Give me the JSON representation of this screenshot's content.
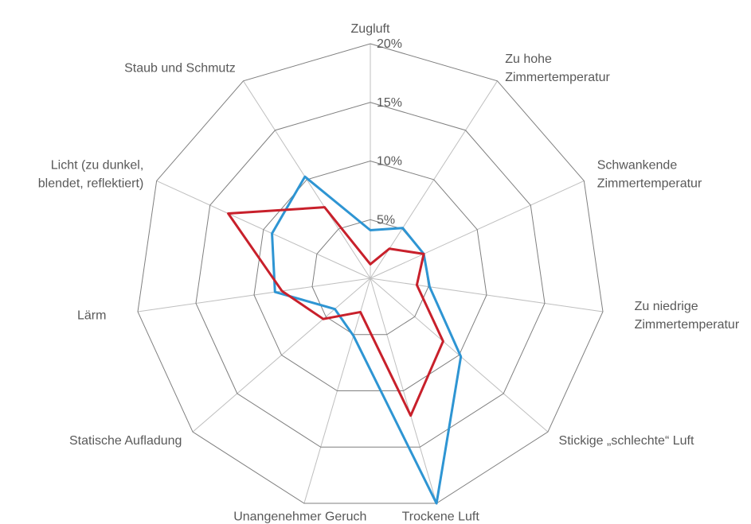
{
  "chart_data": {
    "type": "radar",
    "categories": [
      "Zugluft",
      "Zu hohe\nZimmertemperatur",
      "Schwankende\nZimmertemperatur",
      "Zu niedrige\nZimmertemperatur",
      "Stickige „schlechte“ Luft",
      "Trockene Luft",
      "Unangenehmer Geruch",
      "Statische Aufladung",
      "Lärm",
      "Licht (zu dunkel,\nblendet, reflektiert)",
      "Staub und Schmutz"
    ],
    "series": [
      {
        "color": "#2e95d3",
        "values": [
          4.1,
          5.1,
          5.0,
          5.1,
          10.2,
          20.0,
          5.1,
          4.0,
          8.2,
          9.2,
          10.3
        ]
      },
      {
        "color": "#c8202b",
        "values": [
          1.2,
          3.0,
          5.0,
          4.0,
          8.2,
          12.2,
          3.0,
          5.3,
          7.6,
          13.3,
          7.2
        ]
      }
    ],
    "ylim": [
      0,
      20
    ],
    "yticks": [
      {
        "value": 5,
        "label": "5%"
      },
      {
        "value": 10,
        "label": "10%"
      },
      {
        "value": 15,
        "label": "15%"
      },
      {
        "value": 20,
        "label": "20%"
      }
    ],
    "grid": true
  }
}
